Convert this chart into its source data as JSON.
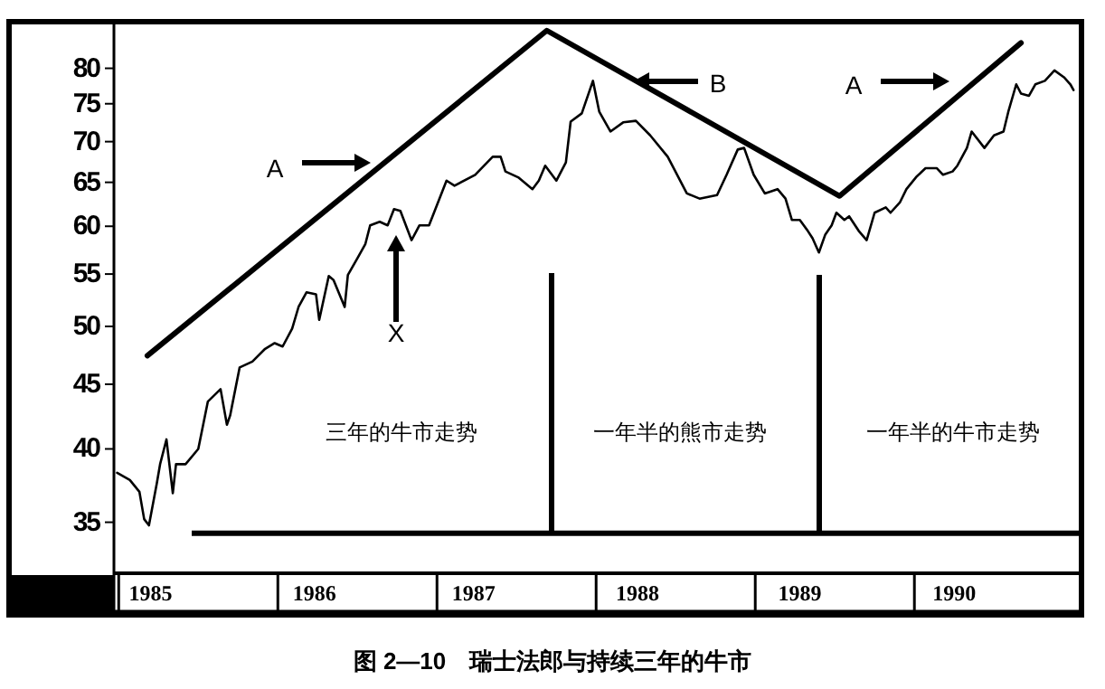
{
  "chart_data": {
    "type": "line",
    "title": "图 2—10　瑞士法郎与持续三年的牛市",
    "log": true,
    "grid": false,
    "marker": "none",
    "line_style": "solid",
    "xlim": [
      1984.97,
      1991.05
    ],
    "xticks": [
      {
        "value": 1985.2,
        "label": "1985"
      },
      {
        "value": 1986.23,
        "label": "1986"
      },
      {
        "value": 1987.23,
        "label": "1987"
      },
      {
        "value": 1988.26,
        "label": "1988"
      },
      {
        "value": 1989.28,
        "label": "1989"
      },
      {
        "value": 1990.25,
        "label": "1990"
      }
    ],
    "ylim": [
      32,
      86.8
    ],
    "yticks": [
      35,
      40,
      45,
      50,
      55,
      60,
      65,
      70,
      75,
      80
    ],
    "series": [
      {
        "color": "#000000",
        "x": [
          1984.99,
          1985.07,
          1985.13,
          1985.16,
          1985.19,
          1985.24,
          1985.26,
          1985.3,
          1985.34,
          1985.36,
          1985.42,
          1985.5,
          1985.56,
          1985.64,
          1985.68,
          1985.7,
          1985.76,
          1985.84,
          1985.92,
          1985.98,
          1986.03,
          1986.09,
          1986.13,
          1986.18,
          1986.24,
          1986.26,
          1986.32,
          1986.35,
          1986.42,
          1986.44,
          1986.5,
          1986.55,
          1986.58,
          1986.64,
          1986.69,
          1986.73,
          1986.77,
          1986.84,
          1986.89,
          1986.95,
          1987.06,
          1987.11,
          1987.24,
          1987.35,
          1987.4,
          1987.43,
          1987.51,
          1987.6,
          1987.64,
          1987.68,
          1987.75,
          1987.81,
          1987.84,
          1987.91,
          1987.98,
          1988.02,
          1988.09,
          1988.17,
          1988.25,
          1988.34,
          1988.45,
          1988.57,
          1988.65,
          1988.76,
          1988.82,
          1988.89,
          1988.93,
          1988.99,
          1989.06,
          1989.14,
          1989.19,
          1989.23,
          1989.28,
          1989.33,
          1989.36,
          1989.4,
          1989.44,
          1989.48,
          1989.51,
          1989.56,
          1989.59,
          1989.65,
          1989.7,
          1989.75,
          1989.82,
          1989.85,
          1989.91,
          1989.95,
          1990.01,
          1990.07,
          1990.14,
          1990.18,
          1990.24,
          1990.27,
          1990.33,
          1990.36,
          1990.44,
          1990.5,
          1990.56,
          1990.59,
          1990.64,
          1990.67,
          1990.72,
          1990.76,
          1990.82,
          1990.88,
          1990.94,
          1990.98,
          1991.0
        ],
        "values": [
          38.3,
          37.8,
          37.0,
          35.2,
          34.8,
          37.6,
          38.9,
          40.7,
          36.9,
          38.9,
          38.9,
          40.0,
          43.6,
          44.6,
          41.8,
          42.5,
          46.4,
          46.9,
          48.0,
          48.5,
          48.2,
          49.8,
          51.8,
          53.2,
          53.0,
          50.6,
          54.8,
          54.4,
          51.8,
          54.9,
          56.6,
          58.1,
          60.1,
          60.5,
          60.1,
          61.9,
          61.7,
          58.5,
          60.1,
          60.1,
          65.2,
          64.6,
          65.9,
          68.1,
          68.1,
          66.3,
          65.6,
          64.2,
          65.2,
          67.0,
          65.2,
          67.4,
          72.6,
          73.7,
          78.2,
          73.9,
          71.3,
          72.5,
          72.7,
          70.8,
          68.1,
          63.7,
          63.1,
          63.5,
          65.9,
          69.0,
          69.2,
          65.9,
          63.7,
          64.2,
          63.1,
          60.7,
          60.7,
          59.5,
          58.7,
          57.2,
          59.1,
          60.1,
          61.5,
          60.7,
          61.1,
          59.5,
          58.5,
          61.5,
          62.1,
          61.5,
          62.7,
          64.2,
          65.6,
          66.7,
          66.7,
          65.9,
          66.3,
          67.0,
          69.2,
          71.3,
          69.2,
          70.8,
          71.3,
          73.9,
          77.7,
          76.4,
          76.1,
          77.7,
          78.2,
          79.7,
          78.7,
          77.7,
          76.9
        ]
      },
      {
        "type": "line",
        "color": "#000000",
        "x": [
          1985.18,
          1987.69,
          1989.53,
          1990.67
        ],
        "values": [
          47.4,
          85.7,
          63.4,
          83.8
        ]
      }
    ],
    "ref_lines": [
      {
        "axis": "y",
        "value": 34.3
      }
    ],
    "annotations": [
      "A",
      "X",
      "B",
      "A",
      "三年的牛市走势",
      "一年半的熊市走势",
      "一年半的牛市走势"
    ]
  }
}
